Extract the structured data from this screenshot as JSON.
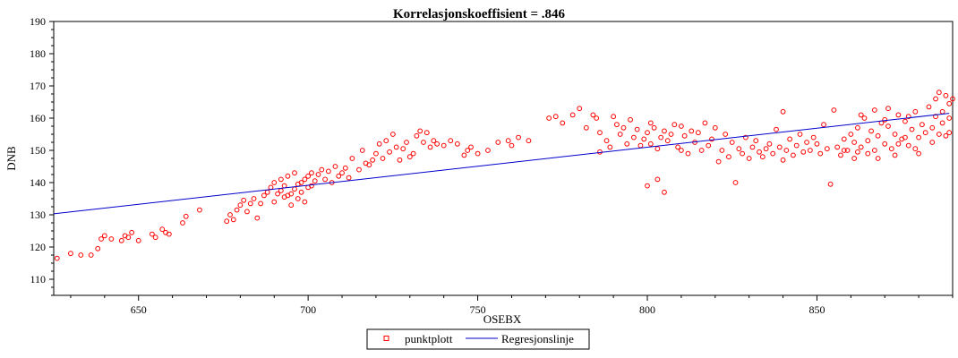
{
  "chart_data": {
    "type": "scatter",
    "title": "Korrelasjonskoeffisient =  .846",
    "xlabel": "OSEBX",
    "ylabel": "DNB",
    "xlim": [
      625,
      890
    ],
    "ylim": [
      105,
      190
    ],
    "xticks": [
      650,
      700,
      750,
      800,
      850
    ],
    "yticks": [
      110,
      120,
      130,
      140,
      150,
      160,
      170,
      180,
      190
    ],
    "grid": false,
    "legend_position": "bottom-center",
    "colors": {
      "scatter": "#ff0000",
      "regression": "#0000cc",
      "axis": "#000000"
    },
    "series": [
      {
        "name": "punktplott",
        "kind": "scatter",
        "points": [
          [
            626,
            116.5
          ],
          [
            630,
            118
          ],
          [
            633,
            117.5
          ],
          [
            636,
            117.5
          ],
          [
            638,
            119.5
          ],
          [
            639,
            122.5
          ],
          [
            640,
            123.5
          ],
          [
            642,
            122.5
          ],
          [
            645,
            122
          ],
          [
            646,
            123.5
          ],
          [
            647,
            123
          ],
          [
            648,
            124.5
          ],
          [
            650,
            122
          ],
          [
            654,
            124
          ],
          [
            655,
            123
          ],
          [
            657,
            125.5
          ],
          [
            658,
            124.5
          ],
          [
            659,
            124
          ],
          [
            663,
            127.5
          ],
          [
            664,
            129.5
          ],
          [
            668,
            131.5
          ],
          [
            676,
            128
          ],
          [
            677,
            130
          ],
          [
            678,
            128.5
          ],
          [
            679,
            131.5
          ],
          [
            680,
            133
          ],
          [
            681,
            134.5
          ],
          [
            682,
            131
          ],
          [
            683,
            133.5
          ],
          [
            684,
            135
          ],
          [
            685,
            129
          ],
          [
            686,
            133.5
          ],
          [
            687,
            136
          ],
          [
            688,
            137
          ],
          [
            689,
            138.5
          ],
          [
            690,
            140
          ],
          [
            690,
            134
          ],
          [
            691,
            136.5
          ],
          [
            692,
            137.5
          ],
          [
            692,
            141
          ],
          [
            693,
            135.5
          ],
          [
            693,
            139
          ],
          [
            694,
            136
          ],
          [
            694,
            142
          ],
          [
            695,
            136.5
          ],
          [
            695,
            133
          ],
          [
            696,
            138
          ],
          [
            696,
            143
          ],
          [
            697,
            139.5
          ],
          [
            697,
            135
          ],
          [
            698,
            140
          ],
          [
            698,
            137
          ],
          [
            699,
            141
          ],
          [
            699,
            134
          ],
          [
            700,
            142
          ],
          [
            700,
            138.5
          ],
          [
            701,
            143
          ],
          [
            701,
            139
          ],
          [
            702,
            140.5
          ],
          [
            703,
            142.5
          ],
          [
            704,
            144
          ],
          [
            705,
            141
          ],
          [
            706,
            143.5
          ],
          [
            707,
            140
          ],
          [
            708,
            145
          ],
          [
            709,
            142
          ],
          [
            710,
            143
          ],
          [
            711,
            144.5
          ],
          [
            712,
            141.5
          ],
          [
            713,
            147.5
          ],
          [
            715,
            144
          ],
          [
            716,
            150
          ],
          [
            717,
            146
          ],
          [
            718,
            145.5
          ],
          [
            719,
            147
          ],
          [
            720,
            149
          ],
          [
            721,
            152
          ],
          [
            722,
            147.5
          ],
          [
            723,
            153
          ],
          [
            724,
            149.5
          ],
          [
            725,
            155
          ],
          [
            726,
            151
          ],
          [
            727,
            147
          ],
          [
            728,
            150.5
          ],
          [
            729,
            152.5
          ],
          [
            730,
            148
          ],
          [
            731,
            149
          ],
          [
            732,
            154.5
          ],
          [
            733,
            156
          ],
          [
            734,
            152.5
          ],
          [
            735,
            155.5
          ],
          [
            736,
            151
          ],
          [
            737,
            153
          ],
          [
            738,
            152
          ],
          [
            740,
            151.5
          ],
          [
            742,
            153
          ],
          [
            744,
            152
          ],
          [
            746,
            148.5
          ],
          [
            747,
            150
          ],
          [
            748,
            151
          ],
          [
            750,
            149
          ],
          [
            753,
            150
          ],
          [
            756,
            152.5
          ],
          [
            759,
            153
          ],
          [
            760,
            151.5
          ],
          [
            762,
            154
          ],
          [
            765,
            153
          ],
          [
            771,
            160
          ],
          [
            773,
            160.5
          ],
          [
            775,
            158.5
          ],
          [
            778,
            161
          ],
          [
            780,
            163
          ],
          [
            782,
            157
          ],
          [
            784,
            161
          ],
          [
            785,
            160
          ],
          [
            786,
            155.5
          ],
          [
            786,
            149.5
          ],
          [
            788,
            153
          ],
          [
            789,
            151
          ],
          [
            790,
            160.5
          ],
          [
            791,
            158
          ],
          [
            792,
            155
          ],
          [
            793,
            157
          ],
          [
            794,
            152
          ],
          [
            795,
            159.5
          ],
          [
            796,
            154
          ],
          [
            797,
            156.5
          ],
          [
            798,
            151.5
          ],
          [
            799,
            153.5
          ],
          [
            800,
            155.5
          ],
          [
            800,
            139
          ],
          [
            801,
            152
          ],
          [
            801,
            158.5
          ],
          [
            802,
            157
          ],
          [
            803,
            150.5
          ],
          [
            803,
            141
          ],
          [
            804,
            154
          ],
          [
            805,
            156
          ],
          [
            805,
            137
          ],
          [
            806,
            153
          ],
          [
            807,
            155
          ],
          [
            808,
            158
          ],
          [
            809,
            151
          ],
          [
            810,
            157.5
          ],
          [
            810,
            150
          ],
          [
            811,
            154.5
          ],
          [
            812,
            149
          ],
          [
            813,
            156
          ],
          [
            814,
            152.5
          ],
          [
            815,
            155.5
          ],
          [
            816,
            150
          ],
          [
            817,
            158.5
          ],
          [
            818,
            151.5
          ],
          [
            819,
            153.5
          ],
          [
            820,
            157
          ],
          [
            821,
            146.5
          ],
          [
            822,
            150
          ],
          [
            823,
            155
          ],
          [
            824,
            148
          ],
          [
            825,
            152.5
          ],
          [
            826,
            140
          ],
          [
            827,
            150.5
          ],
          [
            828,
            149
          ],
          [
            829,
            154
          ],
          [
            830,
            147.5
          ],
          [
            831,
            151
          ],
          [
            832,
            153
          ],
          [
            833,
            149.5
          ],
          [
            834,
            148
          ],
          [
            835,
            150.5
          ],
          [
            836,
            152
          ],
          [
            837,
            149
          ],
          [
            838,
            156.5
          ],
          [
            839,
            151
          ],
          [
            840,
            147
          ],
          [
            840,
            162
          ],
          [
            841,
            150
          ],
          [
            842,
            153.5
          ],
          [
            843,
            148.5
          ],
          [
            844,
            151.5
          ],
          [
            845,
            155
          ],
          [
            846,
            149.5
          ],
          [
            847,
            152.5
          ],
          [
            848,
            150
          ],
          [
            849,
            154
          ],
          [
            850,
            152
          ],
          [
            851,
            149
          ],
          [
            852,
            158
          ],
          [
            853,
            150.5
          ],
          [
            854,
            139.5
          ],
          [
            855,
            162.5
          ],
          [
            856,
            151
          ],
          [
            857,
            148.5
          ],
          [
            858,
            153.5
          ],
          [
            859,
            150
          ],
          [
            860,
            155
          ],
          [
            861,
            152.5
          ],
          [
            862,
            157
          ],
          [
            862,
            149.5
          ],
          [
            863,
            151
          ],
          [
            864,
            160
          ],
          [
            865,
            153
          ],
          [
            866,
            156
          ],
          [
            867,
            162.5
          ],
          [
            867,
            150
          ],
          [
            868,
            154.5
          ],
          [
            869,
            158.5
          ],
          [
            870,
            152
          ],
          [
            871,
            157.5
          ],
          [
            872,
            150.5
          ],
          [
            873,
            155
          ],
          [
            874,
            161
          ],
          [
            875,
            153.5
          ],
          [
            876,
            159
          ],
          [
            877,
            151.5
          ],
          [
            878,
            156.5
          ],
          [
            879,
            162
          ],
          [
            880,
            154
          ],
          [
            880,
            149
          ],
          [
            881,
            158
          ],
          [
            882,
            155.5
          ],
          [
            883,
            163.5
          ],
          [
            884,
            157
          ],
          [
            884,
            152.5
          ],
          [
            885,
            166
          ],
          [
            885,
            160.5
          ],
          [
            886,
            155
          ],
          [
            886,
            168
          ],
          [
            887,
            158.5
          ],
          [
            887,
            162
          ],
          [
            888,
            154.5
          ],
          [
            888,
            167
          ],
          [
            889,
            160
          ],
          [
            889,
            164.5
          ],
          [
            889,
            155.5
          ],
          [
            890,
            166
          ],
          [
            871,
            163
          ],
          [
            873,
            148.5
          ],
          [
            876,
            154
          ],
          [
            879,
            150.5
          ],
          [
            868,
            147.5
          ],
          [
            865,
            149
          ],
          [
            863,
            161
          ],
          [
            858,
            150
          ],
          [
            861,
            147.5
          ],
          [
            870,
            159.5
          ],
          [
            874,
            152
          ],
          [
            877,
            160.5
          ]
        ]
      },
      {
        "name": "Regresjonslinje",
        "kind": "line",
        "points": [
          [
            625,
            130.3
          ],
          [
            889,
            161.5
          ]
        ]
      }
    ]
  }
}
